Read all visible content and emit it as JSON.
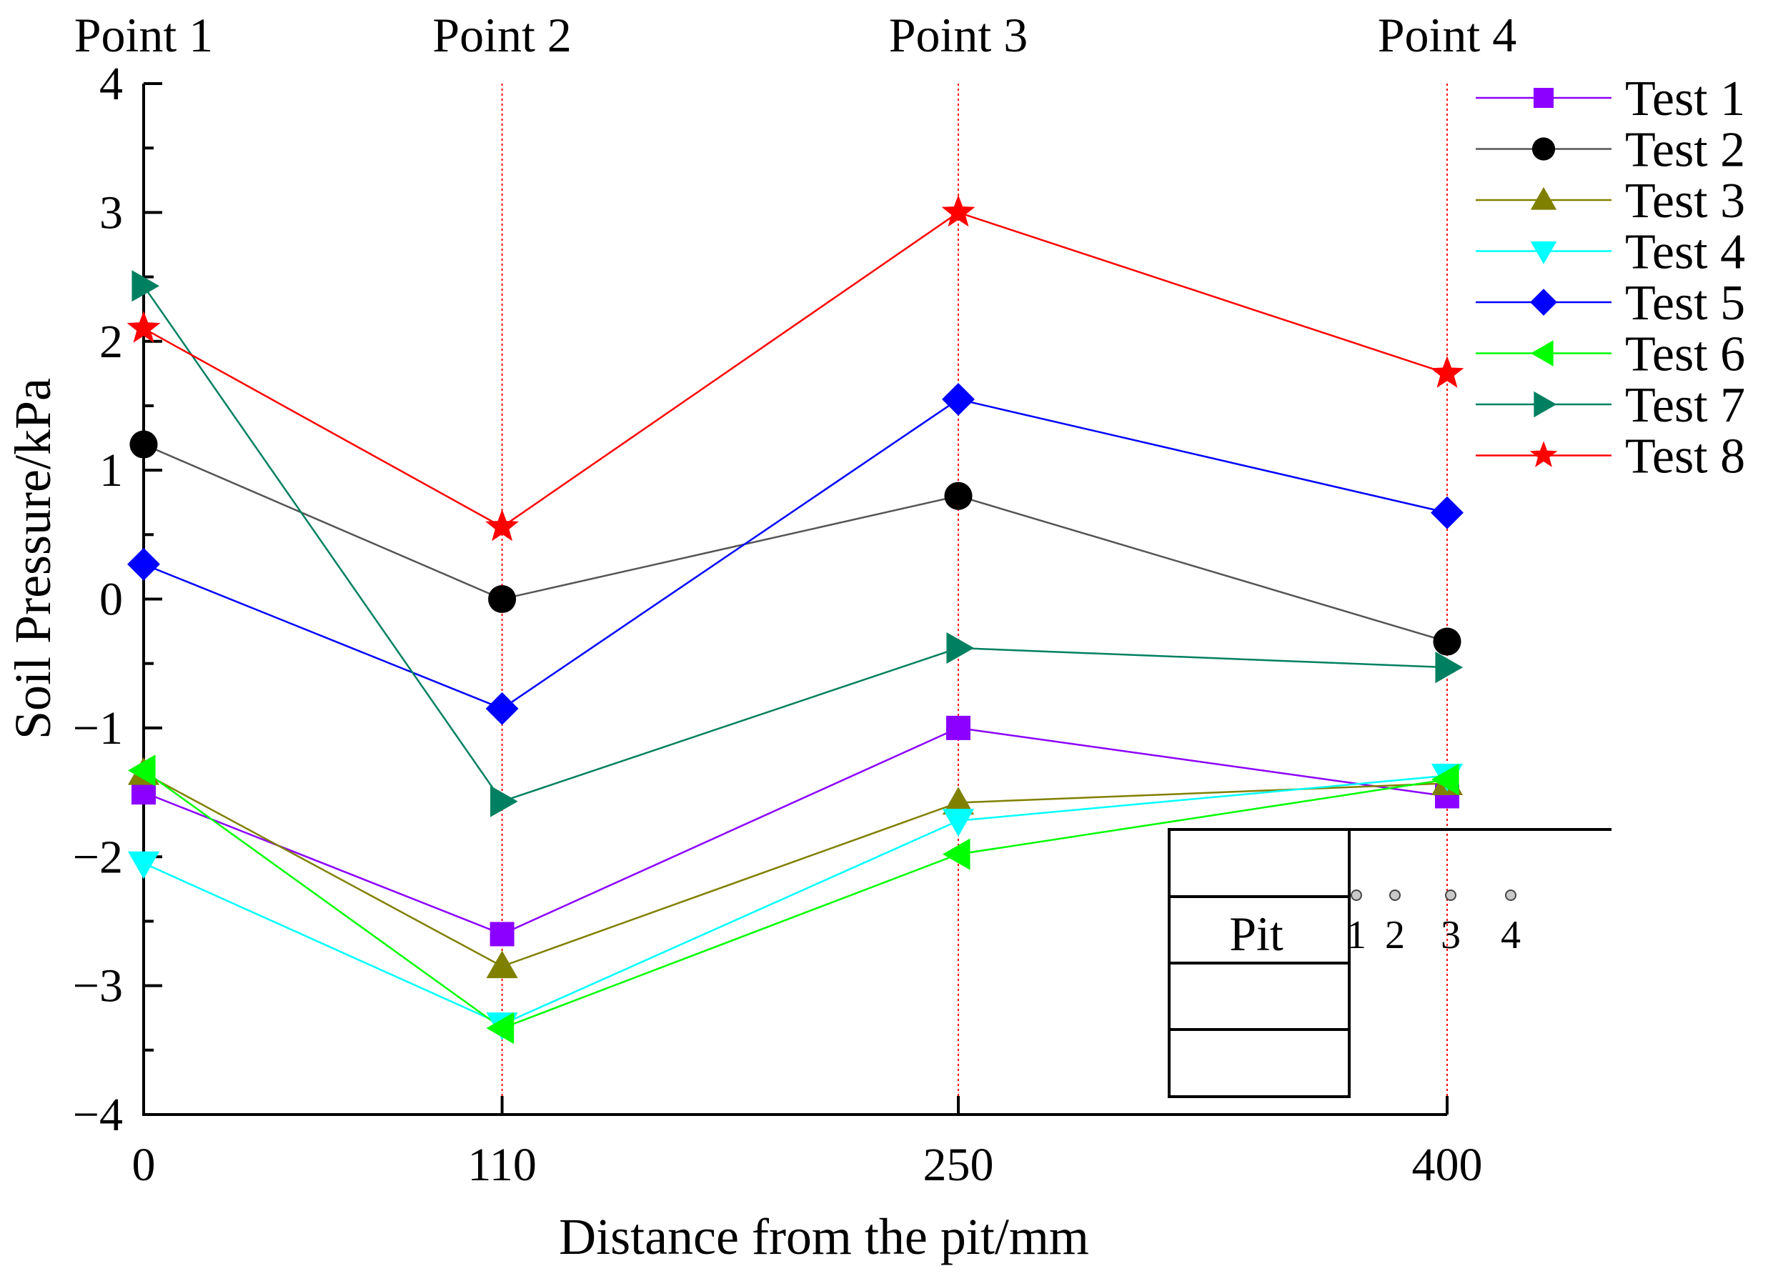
{
  "chart_data": {
    "type": "line",
    "xlabel": "Distance from the pit/mm",
    "ylabel": "Soil Pressure/kPa",
    "x": [
      0,
      110,
      250,
      400
    ],
    "x_tick_labels": [
      "0",
      "110",
      "250",
      "400"
    ],
    "xlim": [
      0,
      400
    ],
    "ylim": [
      -4,
      4
    ],
    "y_ticks": [
      -4,
      -3,
      -2,
      -1,
      0,
      1,
      2,
      3,
      4
    ],
    "y_tick_labels": [
      "−4",
      "−3",
      "−2",
      "−1",
      "0",
      "1",
      "2",
      "3",
      "4"
    ],
    "point_labels": [
      "Point 1",
      "Point 2",
      "Point 3",
      "Point 4"
    ],
    "legend_position": "right",
    "series": [
      {
        "name": "Test 1",
        "color": "#8B00FF",
        "marker": "square",
        "values": [
          -1.5,
          -2.6,
          -1.0,
          -1.53
        ]
      },
      {
        "name": "Test 2",
        "color": "#555555",
        "marker_color": "#000000",
        "marker": "circle",
        "values": [
          1.2,
          0.0,
          0.8,
          -0.33
        ]
      },
      {
        "name": "Test 3",
        "color": "#808000",
        "marker": "triangle-up",
        "values": [
          -1.35,
          -2.85,
          -1.58,
          -1.43
        ]
      },
      {
        "name": "Test 4",
        "color": "#00FFFF",
        "marker": "triangle-down",
        "values": [
          -2.05,
          -3.3,
          -1.72,
          -1.37
        ]
      },
      {
        "name": "Test 5",
        "color": "#0000FF",
        "marker": "diamond",
        "values": [
          0.27,
          -0.85,
          1.55,
          0.67
        ]
      },
      {
        "name": "Test 6",
        "color": "#00FF00",
        "marker": "triangle-left",
        "values": [
          -1.33,
          -3.33,
          -1.98,
          -1.4
        ]
      },
      {
        "name": "Test 7",
        "color": "#008060",
        "marker": "triangle-right",
        "values": [
          2.43,
          -1.57,
          -0.38,
          -0.53
        ]
      },
      {
        "name": "Test 8",
        "color": "#FF0000",
        "marker": "star",
        "values": [
          2.1,
          0.56,
          3.0,
          1.75
        ]
      }
    ],
    "inset": {
      "label": "Pit",
      "sensor_numbers": [
        "1",
        "2",
        "3",
        "4"
      ]
    }
  }
}
